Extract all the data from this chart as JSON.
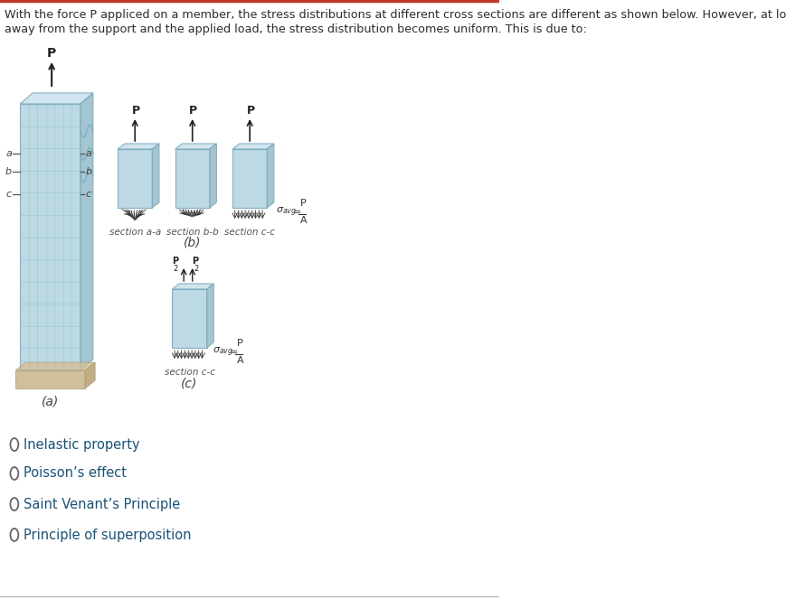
{
  "title_line1": "With the force P appliced on a member, the stress distributions at different cross sections are different as shown below. However, at locations far enough",
  "title_line2": "away from the support and the applied load, the stress distribution becomes uniform. This is due to:",
  "title_color": "#2c2c2c",
  "title_fontsize": 9.2,
  "bg_color": "#ffffff",
  "border_color": "#c0392b",
  "options": [
    "Inelastic property",
    "Poisson’s effect",
    "Saint Venant’s Principle",
    "Principle of superposition"
  ],
  "option_color": "#1a5276",
  "option_fontsize": 10.5,
  "radio_color": "#666666",
  "label_a": "(a)",
  "label_b": "(b)",
  "label_c": "(c)",
  "section_aa": "section a-a",
  "section_bb": "section b-b",
  "section_cc": "section c-c",
  "body_color_front": "#b5d5e2",
  "body_color_top": "#cde3ed",
  "body_color_right": "#9abfcc",
  "body_edge": "#7aaabb",
  "stress_color": "#333333",
  "grid_color": "#8ab5c5",
  "sandy_color": "#c8b48a",
  "sandy_top": "#d4c09a",
  "sandy_edge": "#b09a72"
}
